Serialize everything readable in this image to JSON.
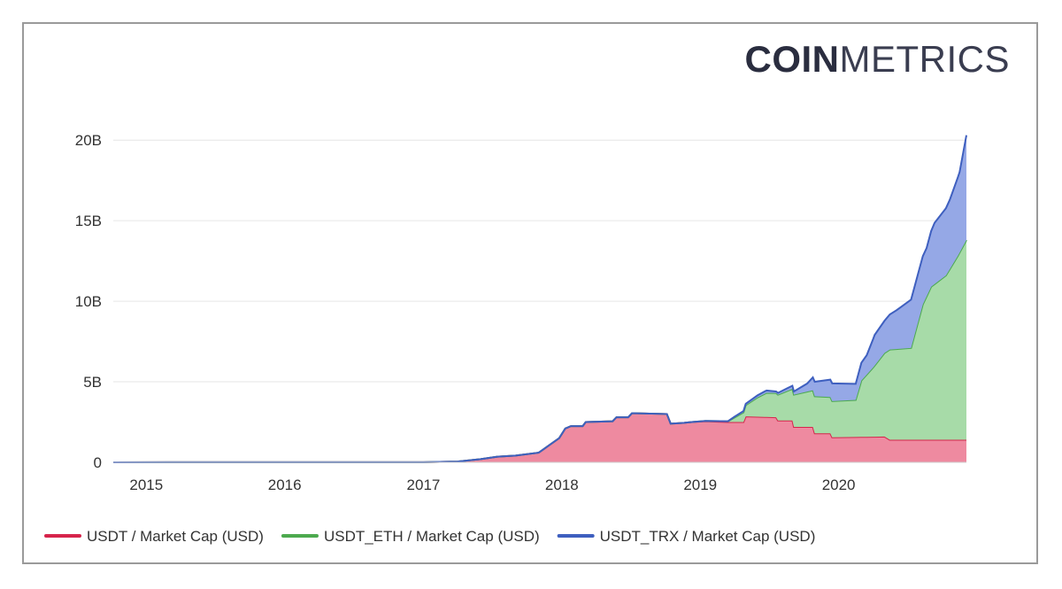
{
  "logo": {
    "bold": "COIN",
    "light": "METRICS"
  },
  "chart_data": {
    "type": "area",
    "stacked": true,
    "x_axis_type": "date",
    "x_ticks": [
      "2015",
      "2016",
      "2017",
      "2018",
      "2019",
      "2020"
    ],
    "y_ticks": [
      "0",
      "5B",
      "10B",
      "15B",
      "20B"
    ],
    "ylim": [
      0,
      21000000000
    ],
    "xlim": [
      "2014-10-06",
      "2020-12-03"
    ],
    "legend_position": "bottom-left",
    "grid": true,
    "series": [
      {
        "name": "USDT / Market Cap (USD)",
        "color": "#d6244b",
        "fill": "#ee8aa0",
        "points": [
          [
            "2014-10-06",
            0
          ],
          [
            "2015-03-01",
            10000000.0
          ],
          [
            "2016-06-01",
            10000000.0
          ],
          [
            "2017-01-01",
            10000000.0
          ],
          [
            "2017-04-01",
            50000000.0
          ],
          [
            "2017-06-01",
            200000000.0
          ],
          [
            "2017-07-15",
            350000000.0
          ],
          [
            "2017-09-01",
            420000000.0
          ],
          [
            "2017-11-01",
            600000000.0
          ],
          [
            "2017-12-01",
            1100000000.0
          ],
          [
            "2017-12-25",
            1500000000.0
          ],
          [
            "2018-01-10",
            2100000000.0
          ],
          [
            "2018-01-25",
            2250000000.0
          ],
          [
            "2018-02-25",
            2250000000.0
          ],
          [
            "2018-03-05",
            2500000000.0
          ],
          [
            "2018-05-15",
            2550000000.0
          ],
          [
            "2018-05-25",
            2800000000.0
          ],
          [
            "2018-06-25",
            2800000000.0
          ],
          [
            "2018-07-05",
            3050000000.0
          ],
          [
            "2018-10-05",
            3000000000.0
          ],
          [
            "2018-10-15",
            2400000000.0
          ],
          [
            "2018-11-20",
            2450000000.0
          ],
          [
            "2018-12-10",
            2500000000.0
          ],
          [
            "2019-01-15",
            2550000000.0
          ],
          [
            "2019-03-15",
            2500000000.0
          ],
          [
            "2019-04-25",
            2500000000.0
          ],
          [
            "2019-05-01",
            2850000000.0
          ],
          [
            "2019-07-20",
            2800000000.0
          ],
          [
            "2019-07-25",
            2600000000.0
          ],
          [
            "2019-09-01",
            2600000000.0
          ],
          [
            "2019-09-05",
            2200000000.0
          ],
          [
            "2019-10-25",
            2200000000.0
          ],
          [
            "2019-10-30",
            1800000000.0
          ],
          [
            "2019-12-10",
            1800000000.0
          ],
          [
            "2019-12-15",
            1550000000.0
          ],
          [
            "2020-05-01",
            1600000000.0
          ],
          [
            "2020-05-15",
            1400000000.0
          ],
          [
            "2020-12-03",
            1400000000.0
          ]
        ]
      },
      {
        "name": "USDT_ETH / Market Cap (USD)",
        "color": "#4caa4e",
        "fill": "#a7dba8",
        "points": [
          [
            "2014-10-06",
            0
          ],
          [
            "2018-12-01",
            0
          ],
          [
            "2019-03-15",
            50000000.0
          ],
          [
            "2019-04-25",
            600000000.0
          ],
          [
            "2019-06-01",
            1200000000.0
          ],
          [
            "2019-06-25",
            1500000000.0
          ],
          [
            "2019-07-20",
            1500000000.0
          ],
          [
            "2019-07-25",
            1600000000.0
          ],
          [
            "2019-09-05",
            2000000000.0
          ],
          [
            "2019-10-30",
            2300000000.0
          ],
          [
            "2019-12-15",
            2250000000.0
          ],
          [
            "2020-02-15",
            2300000000.0
          ],
          [
            "2020-03-01",
            3500000000.0
          ],
          [
            "2020-04-01",
            4300000000.0
          ],
          [
            "2020-05-15",
            5600000000.0
          ],
          [
            "2020-07-10",
            5700000000.0
          ],
          [
            "2020-08-10",
            8400000000.0
          ],
          [
            "2020-09-01",
            9500000000.0
          ],
          [
            "2020-10-10",
            10200000000.0
          ],
          [
            "2020-11-10",
            11400000000.0
          ],
          [
            "2020-12-03",
            12400000000.0
          ]
        ]
      },
      {
        "name": "USDT_TRX / Market Cap (USD)",
        "color": "#3e5fbf",
        "fill": "#95a8e6",
        "points": [
          [
            "2014-10-06",
            0
          ],
          [
            "2019-03-15",
            0
          ],
          [
            "2019-04-01",
            50000000.0
          ],
          [
            "2019-06-20",
            150000000.0
          ],
          [
            "2019-07-20",
            100000000.0
          ],
          [
            "2019-09-05",
            200000000.0
          ],
          [
            "2019-10-10",
            500000000.0
          ],
          [
            "2019-10-30",
            900000000.0
          ],
          [
            "2019-12-15",
            1100000000.0
          ],
          [
            "2020-02-15",
            1000000000.0
          ],
          [
            "2020-03-15",
            1200000000.0
          ],
          [
            "2020-04-05",
            1900000000.0
          ],
          [
            "2020-05-01",
            2000000000.0
          ],
          [
            "2020-06-01",
            2400000000.0
          ],
          [
            "2020-07-10",
            3000000000.0
          ],
          [
            "2020-08-20",
            3000000000.0
          ],
          [
            "2020-09-10",
            3800000000.0
          ],
          [
            "2020-10-20",
            4300000000.0
          ],
          [
            "2020-11-15",
            5000000000.0
          ],
          [
            "2020-12-03",
            6500000000.0
          ]
        ]
      }
    ]
  }
}
